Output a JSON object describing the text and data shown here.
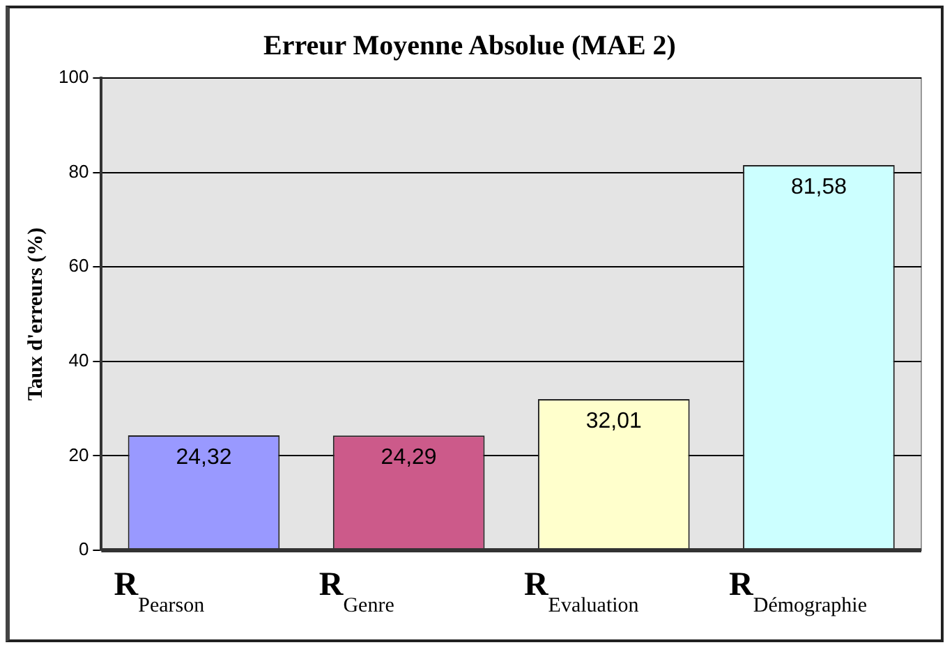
{
  "chart_data": {
    "type": "bar",
    "title": "Erreur Moyenne Absolue (MAE 2)",
    "ylabel": "Taux d'erreurs (%)",
    "categories": [
      "R$_{Pearson}$",
      "R$_{Genre}$",
      "R$_{Evaluation}$",
      "R$_{Démographie}$"
    ],
    "values": [
      24.32,
      24.29,
      32.01,
      81.58
    ],
    "colors": [
      "#9999ff",
      "#cc5a8a",
      "#ffffcc",
      "#ccffff"
    ],
    "value_labels": [
      "24,32",
      "24,29",
      "32,01",
      "81,58"
    ],
    "ylim": [
      0,
      100
    ],
    "yticks": [
      0,
      20,
      40,
      60,
      80,
      100
    ],
    "grid": "y"
  }
}
